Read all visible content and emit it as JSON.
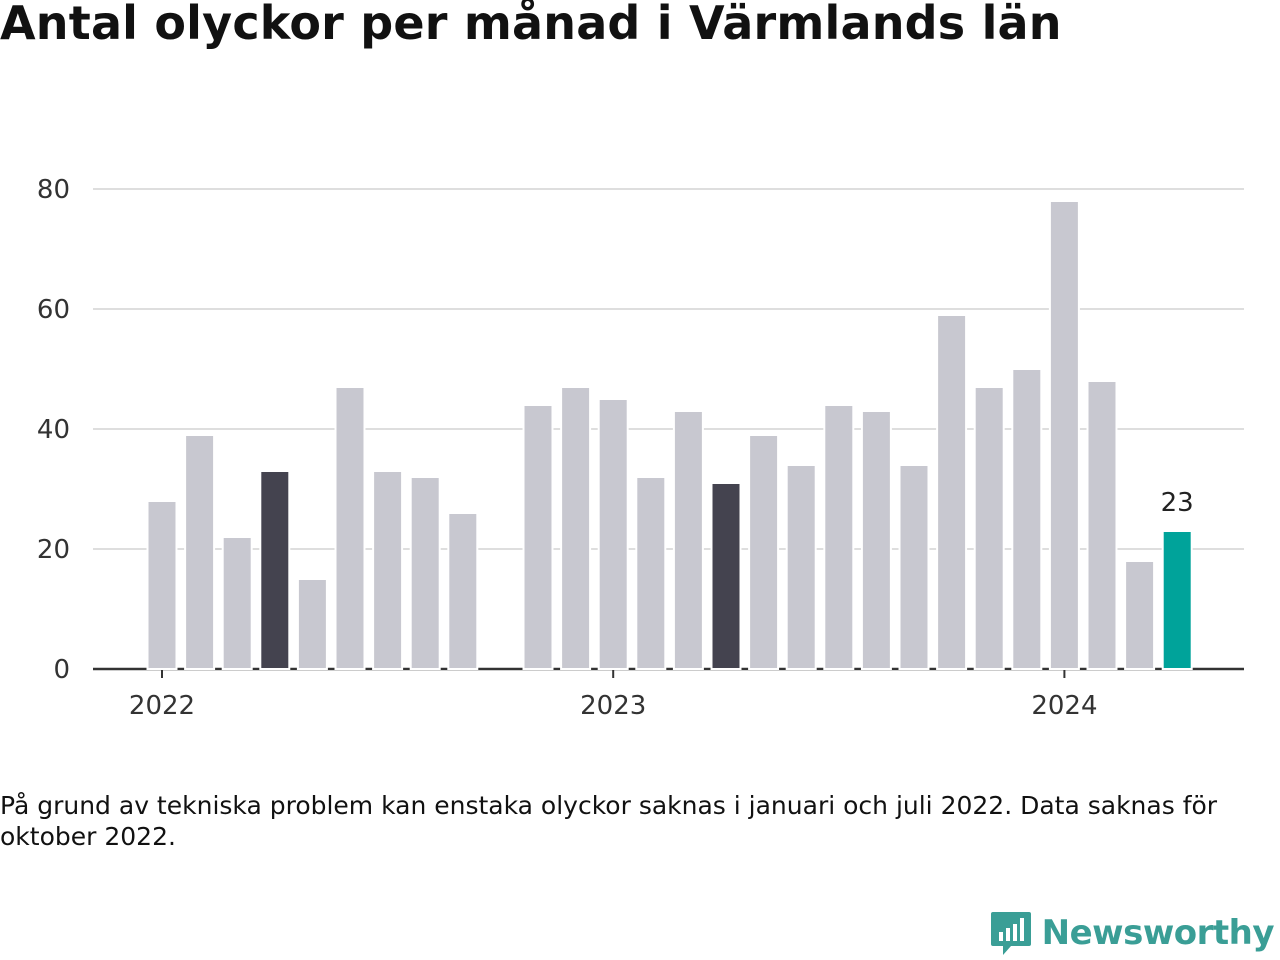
{
  "title": "Antal olyckor per månad i Värmlands län",
  "note": "På grund av tekniska problem kan enstaka olyckor saknas i januari och juli 2022. Data saknas för oktober 2022.",
  "brand": {
    "name": "Newsworthy",
    "icon": "newsworthy-logo-icon"
  },
  "colors": {
    "normal": "#c8c8d0",
    "highlight_dark": "#44434f",
    "current": "#00a39a",
    "grid": "#dedede",
    "axis": "#333333",
    "brand": "#3a9e96"
  },
  "chart_data": {
    "type": "bar",
    "title": "Antal olyckor per månad i Värmlands län",
    "xlabel": "",
    "ylabel": "",
    "ylim": [
      0,
      80
    ],
    "yticks": [
      0,
      20,
      40,
      60,
      80
    ],
    "xtick_labels": [
      {
        "label": "2022",
        "month": "2022-01"
      },
      {
        "label": "2023",
        "month": "2023-01"
      },
      {
        "label": "2024",
        "month": "2024-01"
      }
    ],
    "categories": [
      "2022-01",
      "2022-02",
      "2022-03",
      "2022-04",
      "2022-05",
      "2022-06",
      "2022-07",
      "2022-08",
      "2022-09",
      "2022-10",
      "2022-11",
      "2022-12",
      "2023-01",
      "2023-02",
      "2023-03",
      "2023-04",
      "2023-05",
      "2023-06",
      "2023-07",
      "2023-08",
      "2023-09",
      "2023-10",
      "2023-11",
      "2023-12",
      "2024-01",
      "2024-02",
      "2024-03",
      "2024-04"
    ],
    "values": [
      28,
      39,
      22,
      33,
      15,
      47,
      33,
      32,
      26,
      null,
      44,
      47,
      45,
      32,
      43,
      31,
      39,
      34,
      44,
      43,
      34,
      59,
      47,
      50,
      78,
      48,
      18,
      23
    ],
    "highlight": [
      {
        "month": "2022-04",
        "color": "dark"
      },
      {
        "month": "2023-04",
        "color": "dark"
      },
      {
        "month": "2024-04",
        "color": "current"
      }
    ],
    "data_labels": [
      {
        "month": "2024-04",
        "text": "23"
      }
    ],
    "grid": true
  }
}
